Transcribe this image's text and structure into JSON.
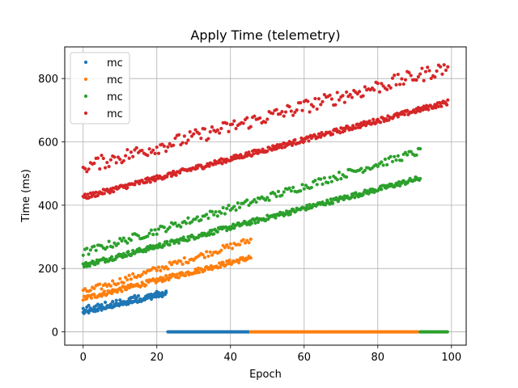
{
  "chart_data": {
    "type": "scatter",
    "title": "Apply Time (telemetry)",
    "xlabel": "Epoch",
    "ylabel": "Time (ms)",
    "xlim": [
      -5,
      104
    ],
    "ylim": [
      -42,
      900
    ],
    "xticks": [
      0,
      20,
      40,
      60,
      80,
      100
    ],
    "yticks": [
      0,
      200,
      400,
      600,
      800
    ],
    "grid": true,
    "legend_position": "top-left",
    "series": [
      {
        "name": "mc",
        "color": "#1f77b4",
        "bands": [
          {
            "x_start": 0,
            "x_end": 22.5,
            "y_start": 60,
            "y_end": 120,
            "spread": 6,
            "step": 0.25
          },
          {
            "x_start": 0,
            "x_end": 22.5,
            "y_start": 70,
            "y_end": 125,
            "spread": 10,
            "step": 0.5
          },
          {
            "x_start": 23,
            "x_end": 45,
            "y_start": 0,
            "y_end": 0,
            "spread": 0,
            "step": 0.2
          }
        ]
      },
      {
        "name": "mc",
        "color": "#ff7f0e",
        "bands": [
          {
            "x_start": 0,
            "x_end": 45.5,
            "y_start": 105,
            "y_end": 235,
            "spread": 8,
            "step": 0.25
          },
          {
            "x_start": 0,
            "x_end": 45.5,
            "y_start": 125,
            "y_end": 290,
            "spread": 10,
            "step": 0.5
          },
          {
            "x_start": 45.5,
            "x_end": 91,
            "y_start": 0,
            "y_end": 0,
            "spread": 0,
            "step": 0.2
          }
        ]
      },
      {
        "name": "mc",
        "color": "#2ca02c",
        "bands": [
          {
            "x_start": 0,
            "x_end": 91.5,
            "y_start": 210,
            "y_end": 485,
            "spread": 8,
            "step": 0.25
          },
          {
            "x_start": 0,
            "x_end": 91.5,
            "y_start": 250,
            "y_end": 570,
            "spread": 12,
            "step": 0.5
          },
          {
            "x_start": 91.5,
            "x_end": 99,
            "y_start": 0,
            "y_end": 0,
            "spread": 0,
            "step": 0.2
          }
        ]
      },
      {
        "name": "mc",
        "color": "#d62728",
        "bands": [
          {
            "x_start": 0,
            "x_end": 99,
            "y_start": 425,
            "y_end": 725,
            "spread": 8,
            "step": 0.25
          },
          {
            "x_start": 0,
            "x_end": 99,
            "y_start": 520,
            "y_end": 835,
            "spread": 22,
            "step": 0.5
          }
        ]
      }
    ]
  }
}
